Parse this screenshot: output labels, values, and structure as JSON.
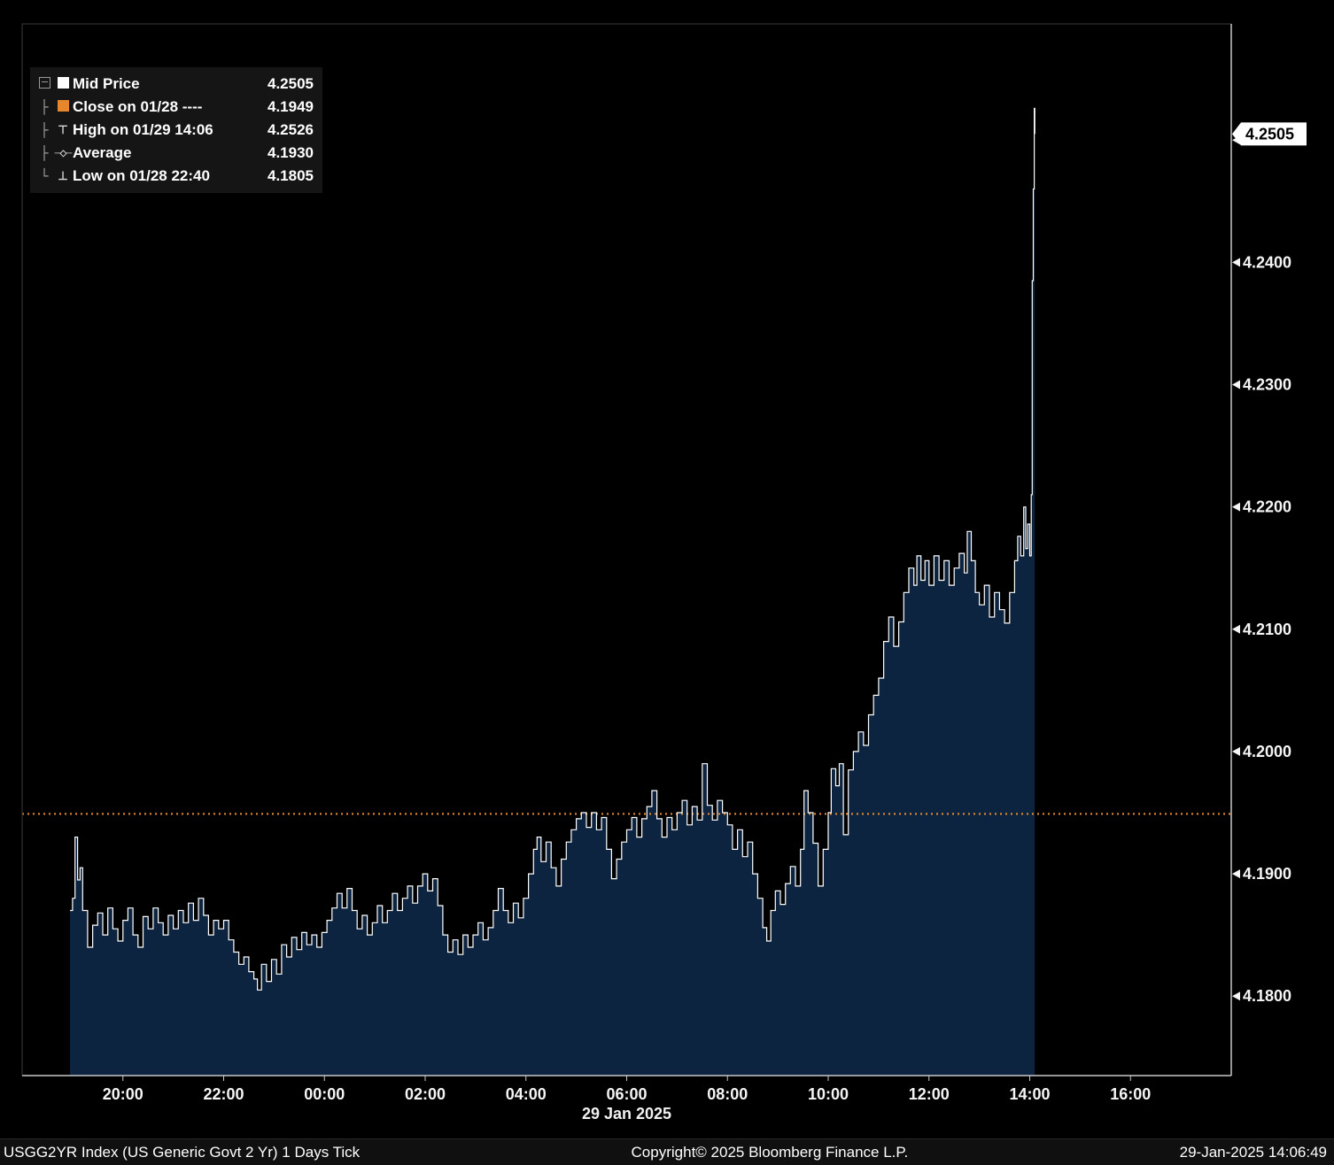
{
  "legend": {
    "rows": [
      {
        "label": "Mid Price",
        "value": "4.2505",
        "marker": "white-square"
      },
      {
        "label": "Close on 01/28 ----",
        "value": "4.1949",
        "marker": "orange-square"
      },
      {
        "label": "High on 01/29 14:06",
        "value": "4.2526",
        "marker": "high-tick"
      },
      {
        "label": "Average",
        "value": "4.1930",
        "marker": "average-marker"
      },
      {
        "label": "Low on 01/28 22:40",
        "value": "4.1805",
        "marker": "low-tick"
      }
    ]
  },
  "footer": {
    "left": "USGG2YR Index (US Generic Govt 2 Yr) 1 Days  Tick",
    "center": "Copyright© 2025 Bloomberg Finance L.P.",
    "right": "29-Jan-2025 14:06:49"
  },
  "colors": {
    "background": "#000000",
    "area_fill": "#0d2440",
    "line": "#ffffff",
    "close_line": "#ee8f2e",
    "orange_swatch": "#e8862d",
    "frame": "#3a3a3a",
    "axis": "#c8c8c8",
    "tick_text": "#f5f5f5",
    "last_box_bg": "#ffffff",
    "last_box_text": "#000000"
  },
  "chart_data": {
    "type": "area",
    "title": "USGG2YR Index (US Generic Govt 2 Yr) 1 Days Tick",
    "x_unit": "hours since 18:00 28-Jan-2025",
    "date_label": "29 Jan 2025",
    "xlim": [
      0,
      24
    ],
    "ylim": [
      4.1735,
      4.2595
    ],
    "grid": false,
    "legend_position": "top-left",
    "x_ticks": [
      {
        "t": 2,
        "label": "20:00"
      },
      {
        "t": 4,
        "label": "22:00"
      },
      {
        "t": 6,
        "label": "00:00"
      },
      {
        "t": 8,
        "label": "02:00"
      },
      {
        "t": 10,
        "label": "04:00"
      },
      {
        "t": 12,
        "label": "06:00"
      },
      {
        "t": 14,
        "label": "08:00"
      },
      {
        "t": 16,
        "label": "10:00"
      },
      {
        "t": 18,
        "label": "12:00"
      },
      {
        "t": 20,
        "label": "14:00"
      },
      {
        "t": 22,
        "label": "16:00"
      }
    ],
    "y_ticks": [
      4.25,
      4.24,
      4.23,
      4.22,
      4.21,
      4.2,
      4.19,
      4.18
    ],
    "prev_close": 4.1949,
    "last": 4.2505,
    "average": 4.193,
    "high": {
      "label": "01/29 14:06",
      "value": 4.2526
    },
    "low": {
      "label": "01/28 22:40",
      "value": 4.1805
    },
    "series": [
      {
        "name": "Mid Price",
        "points": [
          [
            0.95,
            4.187
          ],
          [
            1.0,
            4.188
          ],
          [
            1.05,
            4.193
          ],
          [
            1.1,
            4.1895
          ],
          [
            1.15,
            4.1905
          ],
          [
            1.2,
            4.187
          ],
          [
            1.3,
            4.184
          ],
          [
            1.4,
            4.1858
          ],
          [
            1.5,
            4.1868
          ],
          [
            1.6,
            4.185
          ],
          [
            1.7,
            4.1872
          ],
          [
            1.8,
            4.1855
          ],
          [
            1.9,
            4.1845
          ],
          [
            2.0,
            4.1862
          ],
          [
            2.1,
            4.1872
          ],
          [
            2.2,
            4.185
          ],
          [
            2.3,
            4.184
          ],
          [
            2.4,
            4.1865
          ],
          [
            2.5,
            4.1855
          ],
          [
            2.6,
            4.1872
          ],
          [
            2.7,
            4.186
          ],
          [
            2.8,
            4.185
          ],
          [
            2.9,
            4.1866
          ],
          [
            3.0,
            4.1855
          ],
          [
            3.1,
            4.187
          ],
          [
            3.2,
            4.186
          ],
          [
            3.3,
            4.1876
          ],
          [
            3.4,
            4.1862
          ],
          [
            3.5,
            4.188
          ],
          [
            3.6,
            4.1866
          ],
          [
            3.7,
            4.185
          ],
          [
            3.8,
            4.1862
          ],
          [
            3.9,
            4.1855
          ],
          [
            4.0,
            4.1862
          ],
          [
            4.1,
            4.1846
          ],
          [
            4.2,
            4.1836
          ],
          [
            4.3,
            4.1826
          ],
          [
            4.4,
            4.1832
          ],
          [
            4.5,
            4.182
          ],
          [
            4.6,
            4.1814
          ],
          [
            4.67,
            4.1805
          ],
          [
            4.75,
            4.1826
          ],
          [
            4.85,
            4.1812
          ],
          [
            4.95,
            4.183
          ],
          [
            5.05,
            4.1818
          ],
          [
            5.15,
            4.1842
          ],
          [
            5.25,
            4.1832
          ],
          [
            5.35,
            4.1848
          ],
          [
            5.45,
            4.1838
          ],
          [
            5.55,
            4.1852
          ],
          [
            5.65,
            4.1842
          ],
          [
            5.75,
            4.185
          ],
          [
            5.85,
            4.184
          ],
          [
            5.95,
            4.1852
          ],
          [
            6.05,
            4.1862
          ],
          [
            6.15,
            4.1872
          ],
          [
            6.25,
            4.1884
          ],
          [
            6.35,
            4.1872
          ],
          [
            6.45,
            4.1888
          ],
          [
            6.55,
            4.187
          ],
          [
            6.65,
            4.1855
          ],
          [
            6.75,
            4.1866
          ],
          [
            6.85,
            4.185
          ],
          [
            6.95,
            4.186
          ],
          [
            7.05,
            4.1874
          ],
          [
            7.15,
            4.186
          ],
          [
            7.25,
            4.187
          ],
          [
            7.35,
            4.1884
          ],
          [
            7.45,
            4.187
          ],
          [
            7.55,
            4.188
          ],
          [
            7.65,
            4.189
          ],
          [
            7.75,
            4.1876
          ],
          [
            7.85,
            4.189
          ],
          [
            7.95,
            4.19
          ],
          [
            8.05,
            4.1886
          ],
          [
            8.15,
            4.1896
          ],
          [
            8.25,
            4.1874
          ],
          [
            8.35,
            4.185
          ],
          [
            8.45,
            4.1836
          ],
          [
            8.55,
            4.1846
          ],
          [
            8.65,
            4.1834
          ],
          [
            8.75,
            4.185
          ],
          [
            8.85,
            4.184
          ],
          [
            8.95,
            4.185
          ],
          [
            9.05,
            4.186
          ],
          [
            9.15,
            4.1846
          ],
          [
            9.25,
            4.1856
          ],
          [
            9.35,
            4.187
          ],
          [
            9.45,
            4.1888
          ],
          [
            9.55,
            4.187
          ],
          [
            9.65,
            4.186
          ],
          [
            9.75,
            4.1876
          ],
          [
            9.85,
            4.1864
          ],
          [
            9.95,
            4.188
          ],
          [
            10.05,
            4.19
          ],
          [
            10.15,
            4.192
          ],
          [
            10.22,
            4.193
          ],
          [
            10.3,
            4.191
          ],
          [
            10.4,
            4.1926
          ],
          [
            10.5,
            4.1905
          ],
          [
            10.6,
            4.189
          ],
          [
            10.7,
            4.1912
          ],
          [
            10.8,
            4.1926
          ],
          [
            10.9,
            4.1936
          ],
          [
            11.0,
            4.1945
          ],
          [
            11.1,
            4.195
          ],
          [
            11.2,
            4.1938
          ],
          [
            11.3,
            4.195
          ],
          [
            11.4,
            4.1936
          ],
          [
            11.5,
            4.1946
          ],
          [
            11.6,
            4.192
          ],
          [
            11.7,
            4.1896
          ],
          [
            11.8,
            4.1912
          ],
          [
            11.9,
            4.1926
          ],
          [
            12.0,
            4.1936
          ],
          [
            12.1,
            4.1946
          ],
          [
            12.2,
            4.193
          ],
          [
            12.3,
            4.1945
          ],
          [
            12.4,
            4.1955
          ],
          [
            12.5,
            4.1968
          ],
          [
            12.6,
            4.1945
          ],
          [
            12.7,
            4.193
          ],
          [
            12.8,
            4.1946
          ],
          [
            12.9,
            4.1936
          ],
          [
            13.0,
            4.195
          ],
          [
            13.1,
            4.196
          ],
          [
            13.2,
            4.194
          ],
          [
            13.3,
            4.1955
          ],
          [
            13.4,
            4.1944
          ],
          [
            13.5,
            4.199
          ],
          [
            13.6,
            4.1956
          ],
          [
            13.7,
            4.1944
          ],
          [
            13.8,
            4.196
          ],
          [
            13.9,
            4.195
          ],
          [
            14.0,
            4.194
          ],
          [
            14.1,
            4.192
          ],
          [
            14.2,
            4.1936
          ],
          [
            14.3,
            4.1914
          ],
          [
            14.4,
            4.1926
          ],
          [
            14.5,
            4.19
          ],
          [
            14.6,
            4.188
          ],
          [
            14.7,
            4.1856
          ],
          [
            14.78,
            4.1845
          ],
          [
            14.86,
            4.187
          ],
          [
            14.95,
            4.1886
          ],
          [
            15.05,
            4.1875
          ],
          [
            15.15,
            4.1892
          ],
          [
            15.25,
            4.1906
          ],
          [
            15.35,
            4.189
          ],
          [
            15.45,
            4.192
          ],
          [
            15.52,
            4.1968
          ],
          [
            15.6,
            4.195
          ],
          [
            15.7,
            4.1925
          ],
          [
            15.8,
            4.189
          ],
          [
            15.9,
            4.192
          ],
          [
            16.0,
            4.195
          ],
          [
            16.06,
            4.1986
          ],
          [
            16.15,
            4.1972
          ],
          [
            16.22,
            4.199
          ],
          [
            16.3,
            4.1932
          ],
          [
            16.4,
            4.1985
          ],
          [
            16.5,
            4.2
          ],
          [
            16.6,
            4.2016
          ],
          [
            16.7,
            4.2005
          ],
          [
            16.8,
            4.203
          ],
          [
            16.9,
            4.2046
          ],
          [
            17.0,
            4.206
          ],
          [
            17.1,
            4.209
          ],
          [
            17.2,
            4.211
          ],
          [
            17.3,
            4.2086
          ],
          [
            17.4,
            4.2106
          ],
          [
            17.5,
            4.213
          ],
          [
            17.6,
            4.215
          ],
          [
            17.7,
            4.2136
          ],
          [
            17.76,
            4.216
          ],
          [
            17.84,
            4.214
          ],
          [
            17.92,
            4.2156
          ],
          [
            18.0,
            4.2136
          ],
          [
            18.1,
            4.216
          ],
          [
            18.2,
            4.214
          ],
          [
            18.3,
            4.2156
          ],
          [
            18.4,
            4.2136
          ],
          [
            18.5,
            4.215
          ],
          [
            18.6,
            4.2162
          ],
          [
            18.7,
            4.2146
          ],
          [
            18.76,
            4.218
          ],
          [
            18.84,
            4.2156
          ],
          [
            18.92,
            4.213
          ],
          [
            19.0,
            4.212
          ],
          [
            19.1,
            4.2136
          ],
          [
            19.2,
            4.211
          ],
          [
            19.3,
            4.213
          ],
          [
            19.4,
            4.2116
          ],
          [
            19.5,
            4.2105
          ],
          [
            19.6,
            4.213
          ],
          [
            19.7,
            4.2156
          ],
          [
            19.76,
            4.2176
          ],
          [
            19.82,
            4.216
          ],
          [
            19.88,
            4.22
          ],
          [
            19.92,
            4.2166
          ],
          [
            19.96,
            4.2186
          ],
          [
            20.0,
            4.216
          ],
          [
            20.03,
            4.221
          ],
          [
            20.05,
            4.2385
          ],
          [
            20.07,
            4.246
          ],
          [
            20.09,
            4.2526
          ],
          [
            20.1,
            4.2505
          ]
        ]
      }
    ]
  }
}
